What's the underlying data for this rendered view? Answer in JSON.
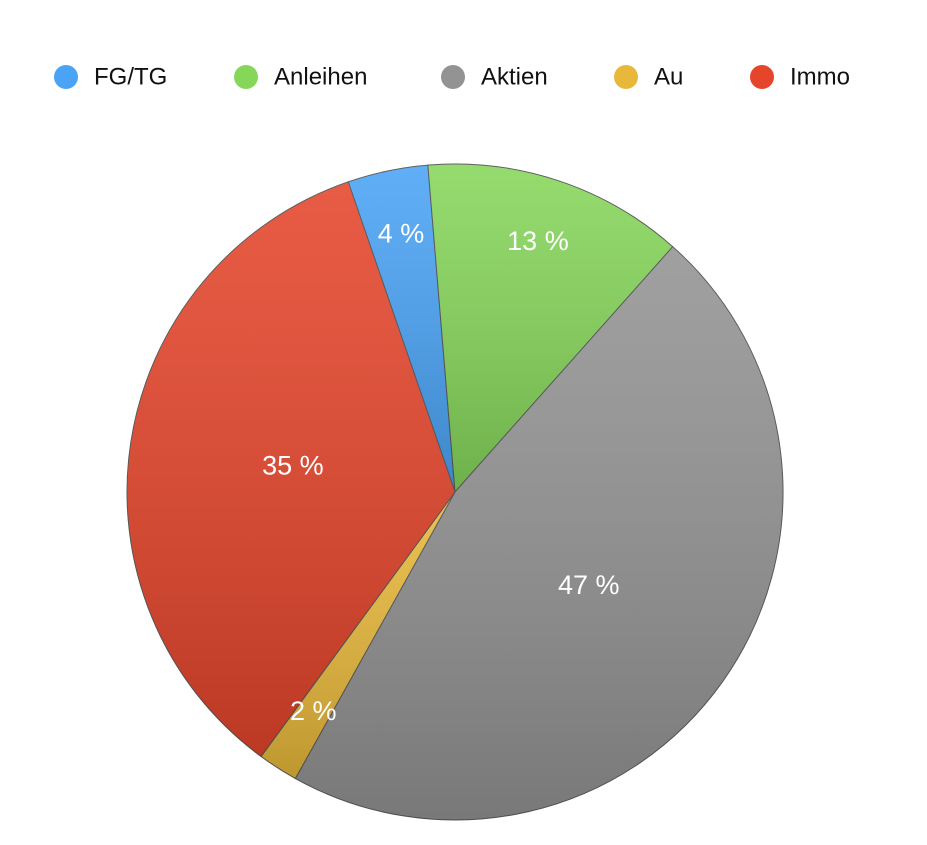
{
  "chart_data": {
    "type": "pie",
    "categories": [
      "FG/TG",
      "Anleihen",
      "Aktien",
      "Au",
      "Immo"
    ],
    "values": [
      4,
      13,
      47,
      2,
      35
    ],
    "value_labels": [
      "4 %",
      "13 %",
      "47 %",
      "2 %",
      "35 %"
    ],
    "colors": [
      "#4aa3f5",
      "#86d65a",
      "#939393",
      "#e8b83a",
      "#e5452b"
    ],
    "legend": "top"
  }
}
